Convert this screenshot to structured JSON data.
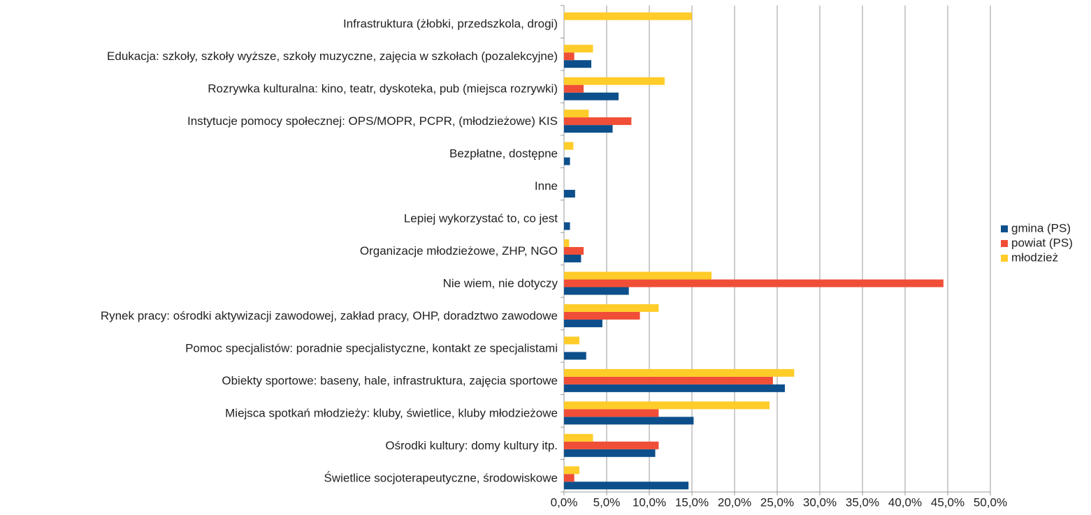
{
  "chart_data": {
    "type": "barh",
    "categories": [
      "Infrastruktura (żłobki, przedszkola, drogi)",
      "Edukacja: szkoły, szkoły wyższe, szkoły muzyczne, zajęcia w szkołach (pozalekcyjne)",
      "Rozrywka kulturalna: kino, teatr, dyskoteka, pub (miejsca rozrywki)",
      "Instytucje pomocy społecznej: OPS/MOPR, PCPR, (młodzieżowe) KIS",
      "Bezpłatne, dostępne",
      "Inne",
      "Lepiej wykorzystać to, co jest",
      "Organizacje młodzieżowe, ZHP, NGO",
      "Nie wiem, nie dotyczy",
      "Rynek pracy: ośrodki aktywizacji zawodowej, zakład pracy, OHP, doradztwo zawodowe",
      "Pomoc specjalistów: poradnie specjalistyczne, kontakt ze specjalistami",
      "Obiekty sportowe: baseny, hale, infrastruktura, zajęcia sportowe",
      "Miejsca spotkań młodzieży: kluby, świetlice, kluby młodzieżowe",
      "Ośrodki kultury: domy kultury itp.",
      "Świetlice socjoterapeutyczne, środowiskowe"
    ],
    "series": [
      {
        "name": "gmina (PS)",
        "color": "#0d4f8b",
        "values": [
          0,
          3.2,
          6.4,
          5.7,
          0.7,
          1.3,
          0.7,
          2.0,
          7.6,
          4.5,
          2.6,
          25.9,
          15.2,
          10.7,
          14.6
        ]
      },
      {
        "name": "powiat (PS)",
        "color": "#f04e37",
        "values": [
          0,
          1.2,
          2.3,
          7.9,
          0,
          0,
          0,
          2.3,
          44.5,
          8.9,
          0,
          24.5,
          11.1,
          11.1,
          1.2
        ]
      },
      {
        "name": "młodzież",
        "color": "#ffcc29",
        "values": [
          15.0,
          3.4,
          11.8,
          2.9,
          1.1,
          0,
          0,
          0.6,
          17.3,
          11.1,
          1.8,
          27.0,
          24.1,
          3.4,
          1.8
        ]
      }
    ],
    "xlim": [
      0,
      50
    ],
    "xticks": [
      {
        "value": 0,
        "label": "0,0%"
      },
      {
        "value": 5,
        "label": "5,0%"
      },
      {
        "value": 10,
        "label": "10,0%"
      },
      {
        "value": 15,
        "label": "15,0%"
      },
      {
        "value": 20,
        "label": "20,0%"
      },
      {
        "value": 25,
        "label": "25,0%"
      },
      {
        "value": 30,
        "label": "30,0%"
      },
      {
        "value": 35,
        "label": "35,0%"
      },
      {
        "value": 40,
        "label": "40,0%"
      },
      {
        "value": 45,
        "label": "45,0%"
      },
      {
        "value": 50,
        "label": "50,0%"
      }
    ],
    "grid": true,
    "legend": "right"
  }
}
